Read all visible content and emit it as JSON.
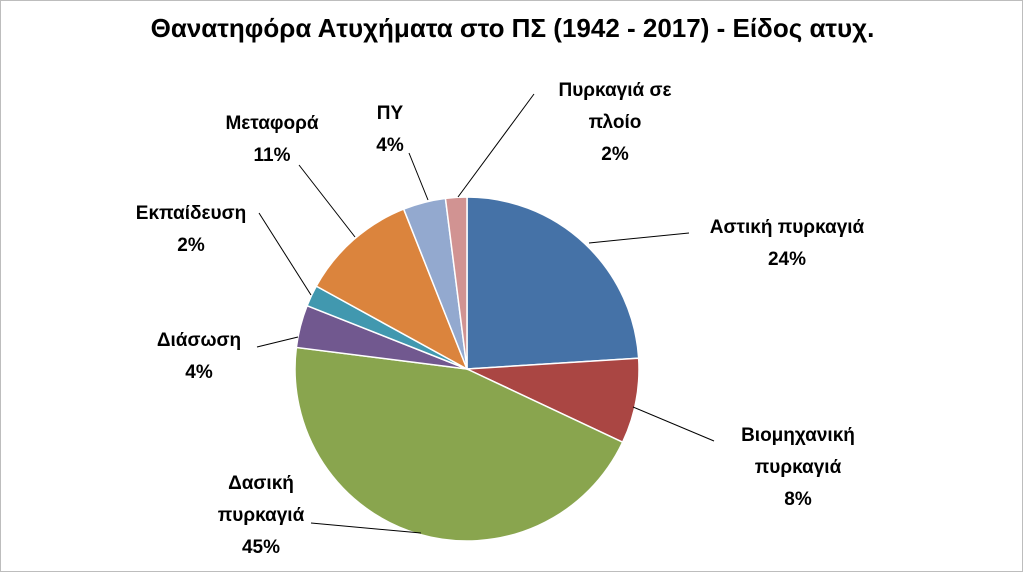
{
  "chart_data": {
    "type": "pie",
    "title": "Θανατηφόρα Ατυχήματα στο ΠΣ (1942 - 2017) - Είδος ατυχ.",
    "legend": "none",
    "slices": [
      {
        "label_lines": [
          "Αστική πυρκαγιά"
        ],
        "value": 24,
        "percent_label": "24%",
        "color": "#4572a7"
      },
      {
        "label_lines": [
          "Βιομηχανική",
          "πυρκαγιά"
        ],
        "value": 8,
        "percent_label": "8%",
        "color": "#aa4643"
      },
      {
        "label_lines": [
          "Δασική",
          "πυρκαγιά"
        ],
        "value": 45,
        "percent_label": "45%",
        "color": "#89a54e"
      },
      {
        "label_lines": [
          "Διάσωση"
        ],
        "value": 4,
        "percent_label": "4%",
        "color": "#71588f"
      },
      {
        "label_lines": [
          "Εκπαίδευση"
        ],
        "value": 2,
        "percent_label": "2%",
        "color": "#4198af"
      },
      {
        "label_lines": [
          "Μεταφορά"
        ],
        "value": 11,
        "percent_label": "11%",
        "color": "#db843d"
      },
      {
        "label_lines": [
          "ΠΥ"
        ],
        "value": 4,
        "percent_label": "4%",
        "color": "#93a9cf"
      },
      {
        "label_lines": [
          "Πυρκαγιά σε",
          "πλοίο"
        ],
        "value": 2,
        "percent_label": "2%",
        "color": "#d19392"
      }
    ]
  }
}
